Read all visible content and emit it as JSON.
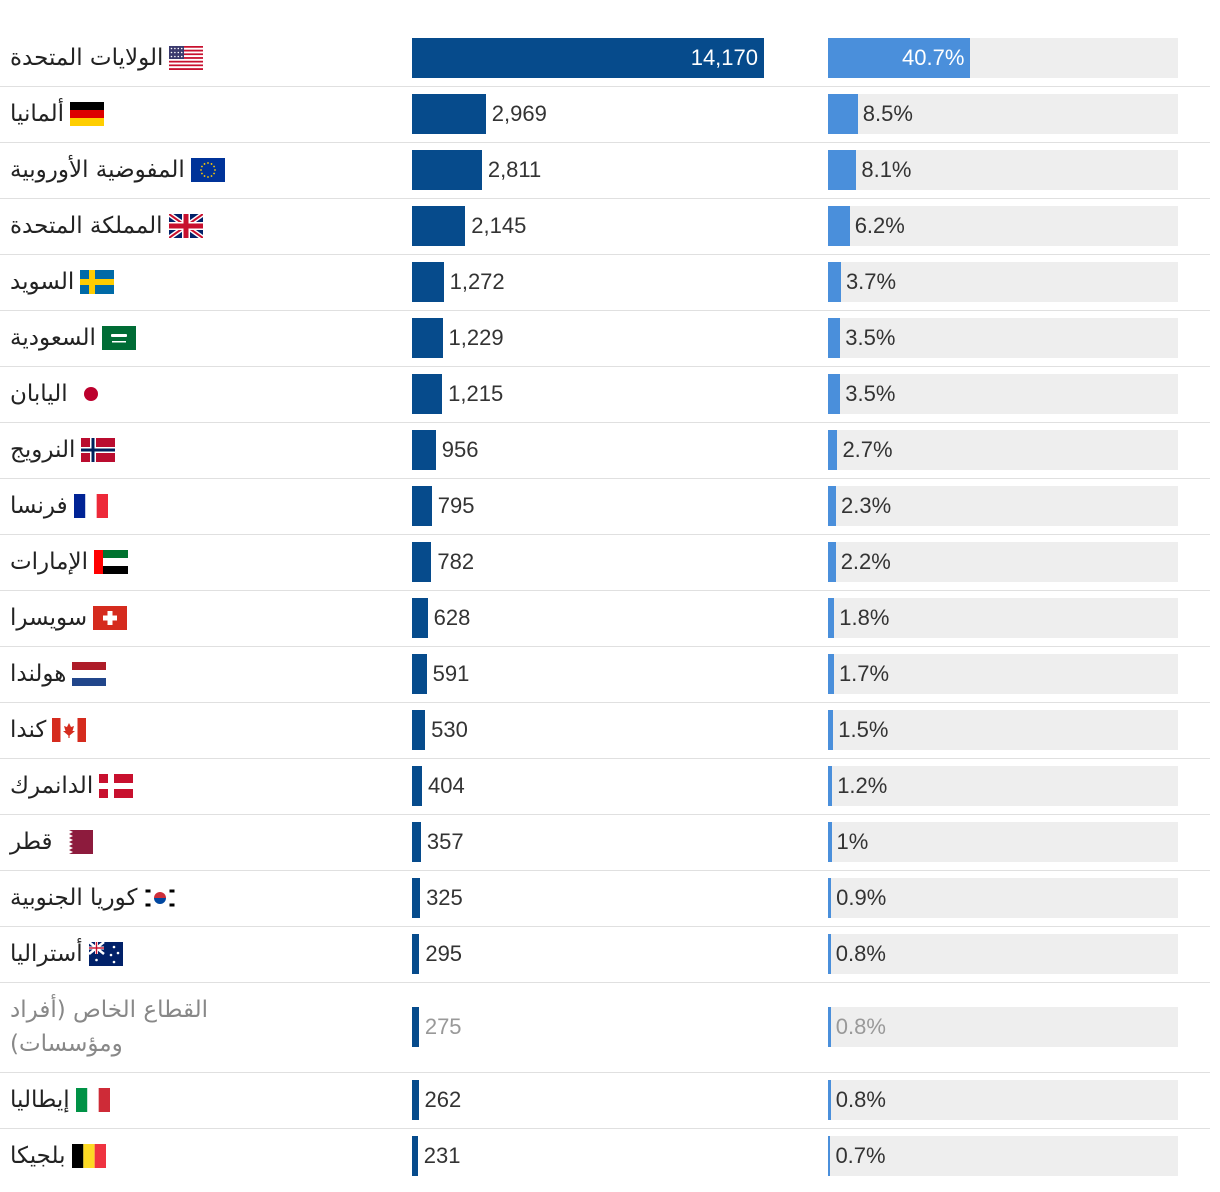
{
  "colors": {
    "value_bar": "#064b8c",
    "share_bar": "#4a8fdb",
    "track": "#eeeeee"
  },
  "chart_data": {
    "type": "bar",
    "orientation": "horizontal",
    "categories": [
      "الولايات المتحدة",
      "ألمانيا",
      "المفوضية الأوروبية",
      "المملكة المتحدة",
      "السويد",
      "السعودية",
      "اليابان",
      "النرويج",
      "فرنسا",
      "الإمارات",
      "سويسرا",
      "هولندا",
      "كندا",
      "الدانمرك",
      "قطر",
      "كوريا الجنوبية",
      "أستراليا",
      "القطاع الخاص (أفراد ومؤسسات)",
      "إيطاليا",
      "بلجيكا"
    ],
    "flags": [
      "us",
      "de",
      "eu",
      "gb",
      "se",
      "sa",
      "jp",
      "no",
      "fr",
      "ae",
      "ch",
      "nl",
      "ca",
      "dk",
      "qa",
      "kr",
      "au",
      "",
      "it",
      "be"
    ],
    "series": [
      {
        "values": [
          14170,
          2969,
          2811,
          2145,
          1272,
          1229,
          1215,
          956,
          795,
          782,
          628,
          591,
          530,
          404,
          357,
          325,
          295,
          275,
          262,
          231
        ],
        "labels": [
          "14,170",
          "2,969",
          "2,811",
          "2,145",
          "1,272",
          "1,229",
          "1,215",
          "956",
          "795",
          "782",
          "628",
          "591",
          "530",
          "404",
          "357",
          "325",
          "295",
          "275",
          "262",
          "231"
        ]
      },
      {
        "values": [
          40.7,
          8.5,
          8.1,
          6.2,
          3.7,
          3.5,
          3.5,
          2.7,
          2.3,
          2.2,
          1.8,
          1.7,
          1.5,
          1.2,
          1,
          0.9,
          0.8,
          0.8,
          0.8,
          0.7
        ],
        "labels": [
          "40.7%",
          "8.5%",
          "8.1%",
          "6.2%",
          "3.7%",
          "3.5%",
          "3.5%",
          "2.7%",
          "2.3%",
          "2.2%",
          "1.8%",
          "1.7%",
          "1.5%",
          "1.2%",
          "1%",
          "0.9%",
          "0.8%",
          "0.8%",
          "0.8%",
          "0.7%"
        ]
      }
    ],
    "muted_rows": [
      17
    ],
    "title": "",
    "xlabel": "",
    "ylabel": "",
    "grid": false
  }
}
